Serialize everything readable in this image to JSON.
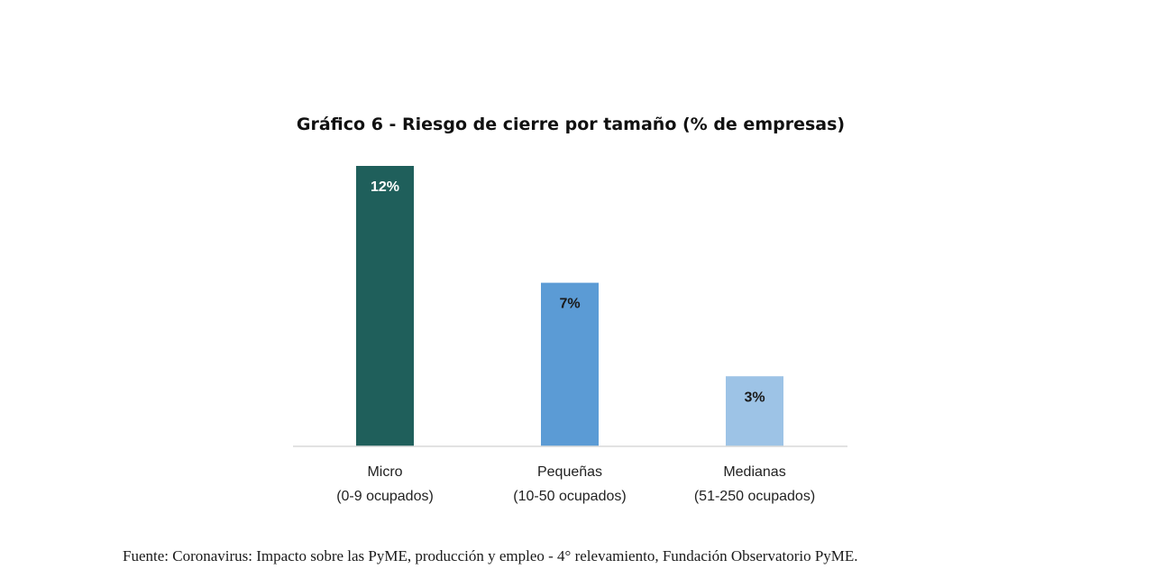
{
  "chart_data": {
    "type": "bar",
    "title": "Gráfico 6 - Riesgo de cierre por tamaño (% de empresas)",
    "categories": [
      {
        "name": "Micro",
        "detail": "(0-9 ocupados)"
      },
      {
        "name": "Pequeñas",
        "detail": "(10-50 ocupados)"
      },
      {
        "name": "Medianas",
        "detail": "(51-250 ocupados)"
      }
    ],
    "values": [
      12,
      7,
      3
    ],
    "value_labels": [
      "12%",
      "7%",
      "3%"
    ],
    "unit": "%",
    "ylim": [
      0,
      12
    ],
    "grid": false,
    "legend": "none",
    "colors": [
      "#1f5f5b",
      "#5b9bd5",
      "#9dc3e6"
    ],
    "label_colors": [
      "#ffffff",
      "#1a1a1a",
      "#1a1a1a"
    ]
  },
  "source_note": "Fuente: Coronavirus: Impacto sobre las PyME, producción y empleo - 4° relevamiento, Fundación Observatorio PyME."
}
